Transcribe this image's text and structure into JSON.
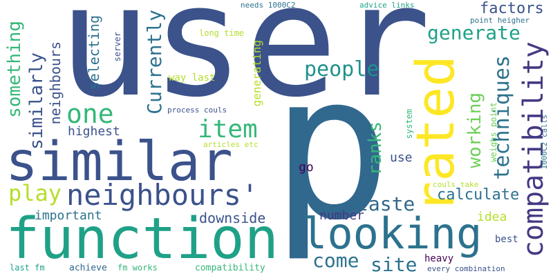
{
  "palette": {
    "navy": "#3b528b",
    "indigo": "#443983",
    "purple": "#440154",
    "blue": "#31688e",
    "teal_blue": "#2c728e",
    "teal": "#21918c",
    "green_teal": "#1fa187",
    "green": "#35b779",
    "light_green": "#6ece58",
    "lime": "#b5de2b",
    "yellow": "#fde725"
  },
  "words": {
    "user": "user",
    "p": "p",
    "similar": "similar",
    "function": "function",
    "looking": "looking",
    "rated": "rated",
    "neighbours_q": "neighbours'",
    "compatibility": "compatibility",
    "item": "item",
    "people": "people",
    "one": "one",
    "generate": "generate",
    "techniques": "techniques",
    "play": "play",
    "taste": "taste",
    "come": "come",
    "site": "site",
    "ranks": "ranks",
    "calculate": "calculate",
    "working": "working",
    "factors": "factors",
    "currently": "Currently",
    "similarly": "similarly",
    "something": "something",
    "neighbours": "neighbours",
    "selecting": "selecting",
    "highest": "highest",
    "important": "important",
    "downside": "downside",
    "number": "number",
    "idea": "idea",
    "use": "use",
    "go": "go",
    "generating": "generating",
    "way_last": "way last",
    "process_couls": "process couls",
    "long_time": "long time",
    "server": "server",
    "needs_1000c2": "needs 1000C2",
    "advice_links": "advice links",
    "point_heigher": "point heigher",
    "weighs_point": "weighs point",
    "system": "system",
    "calls_1000c2": "1000C2 calls",
    "couls_take": "couls take",
    "articles_etc": "articles etc",
    "best": "best",
    "heavy": "heavy",
    "every_combination": "every combination",
    "last_fm": "last fm",
    "achieve": "achieve",
    "fm_works": "fm works",
    "compatibility_small": "compatibility"
  }
}
